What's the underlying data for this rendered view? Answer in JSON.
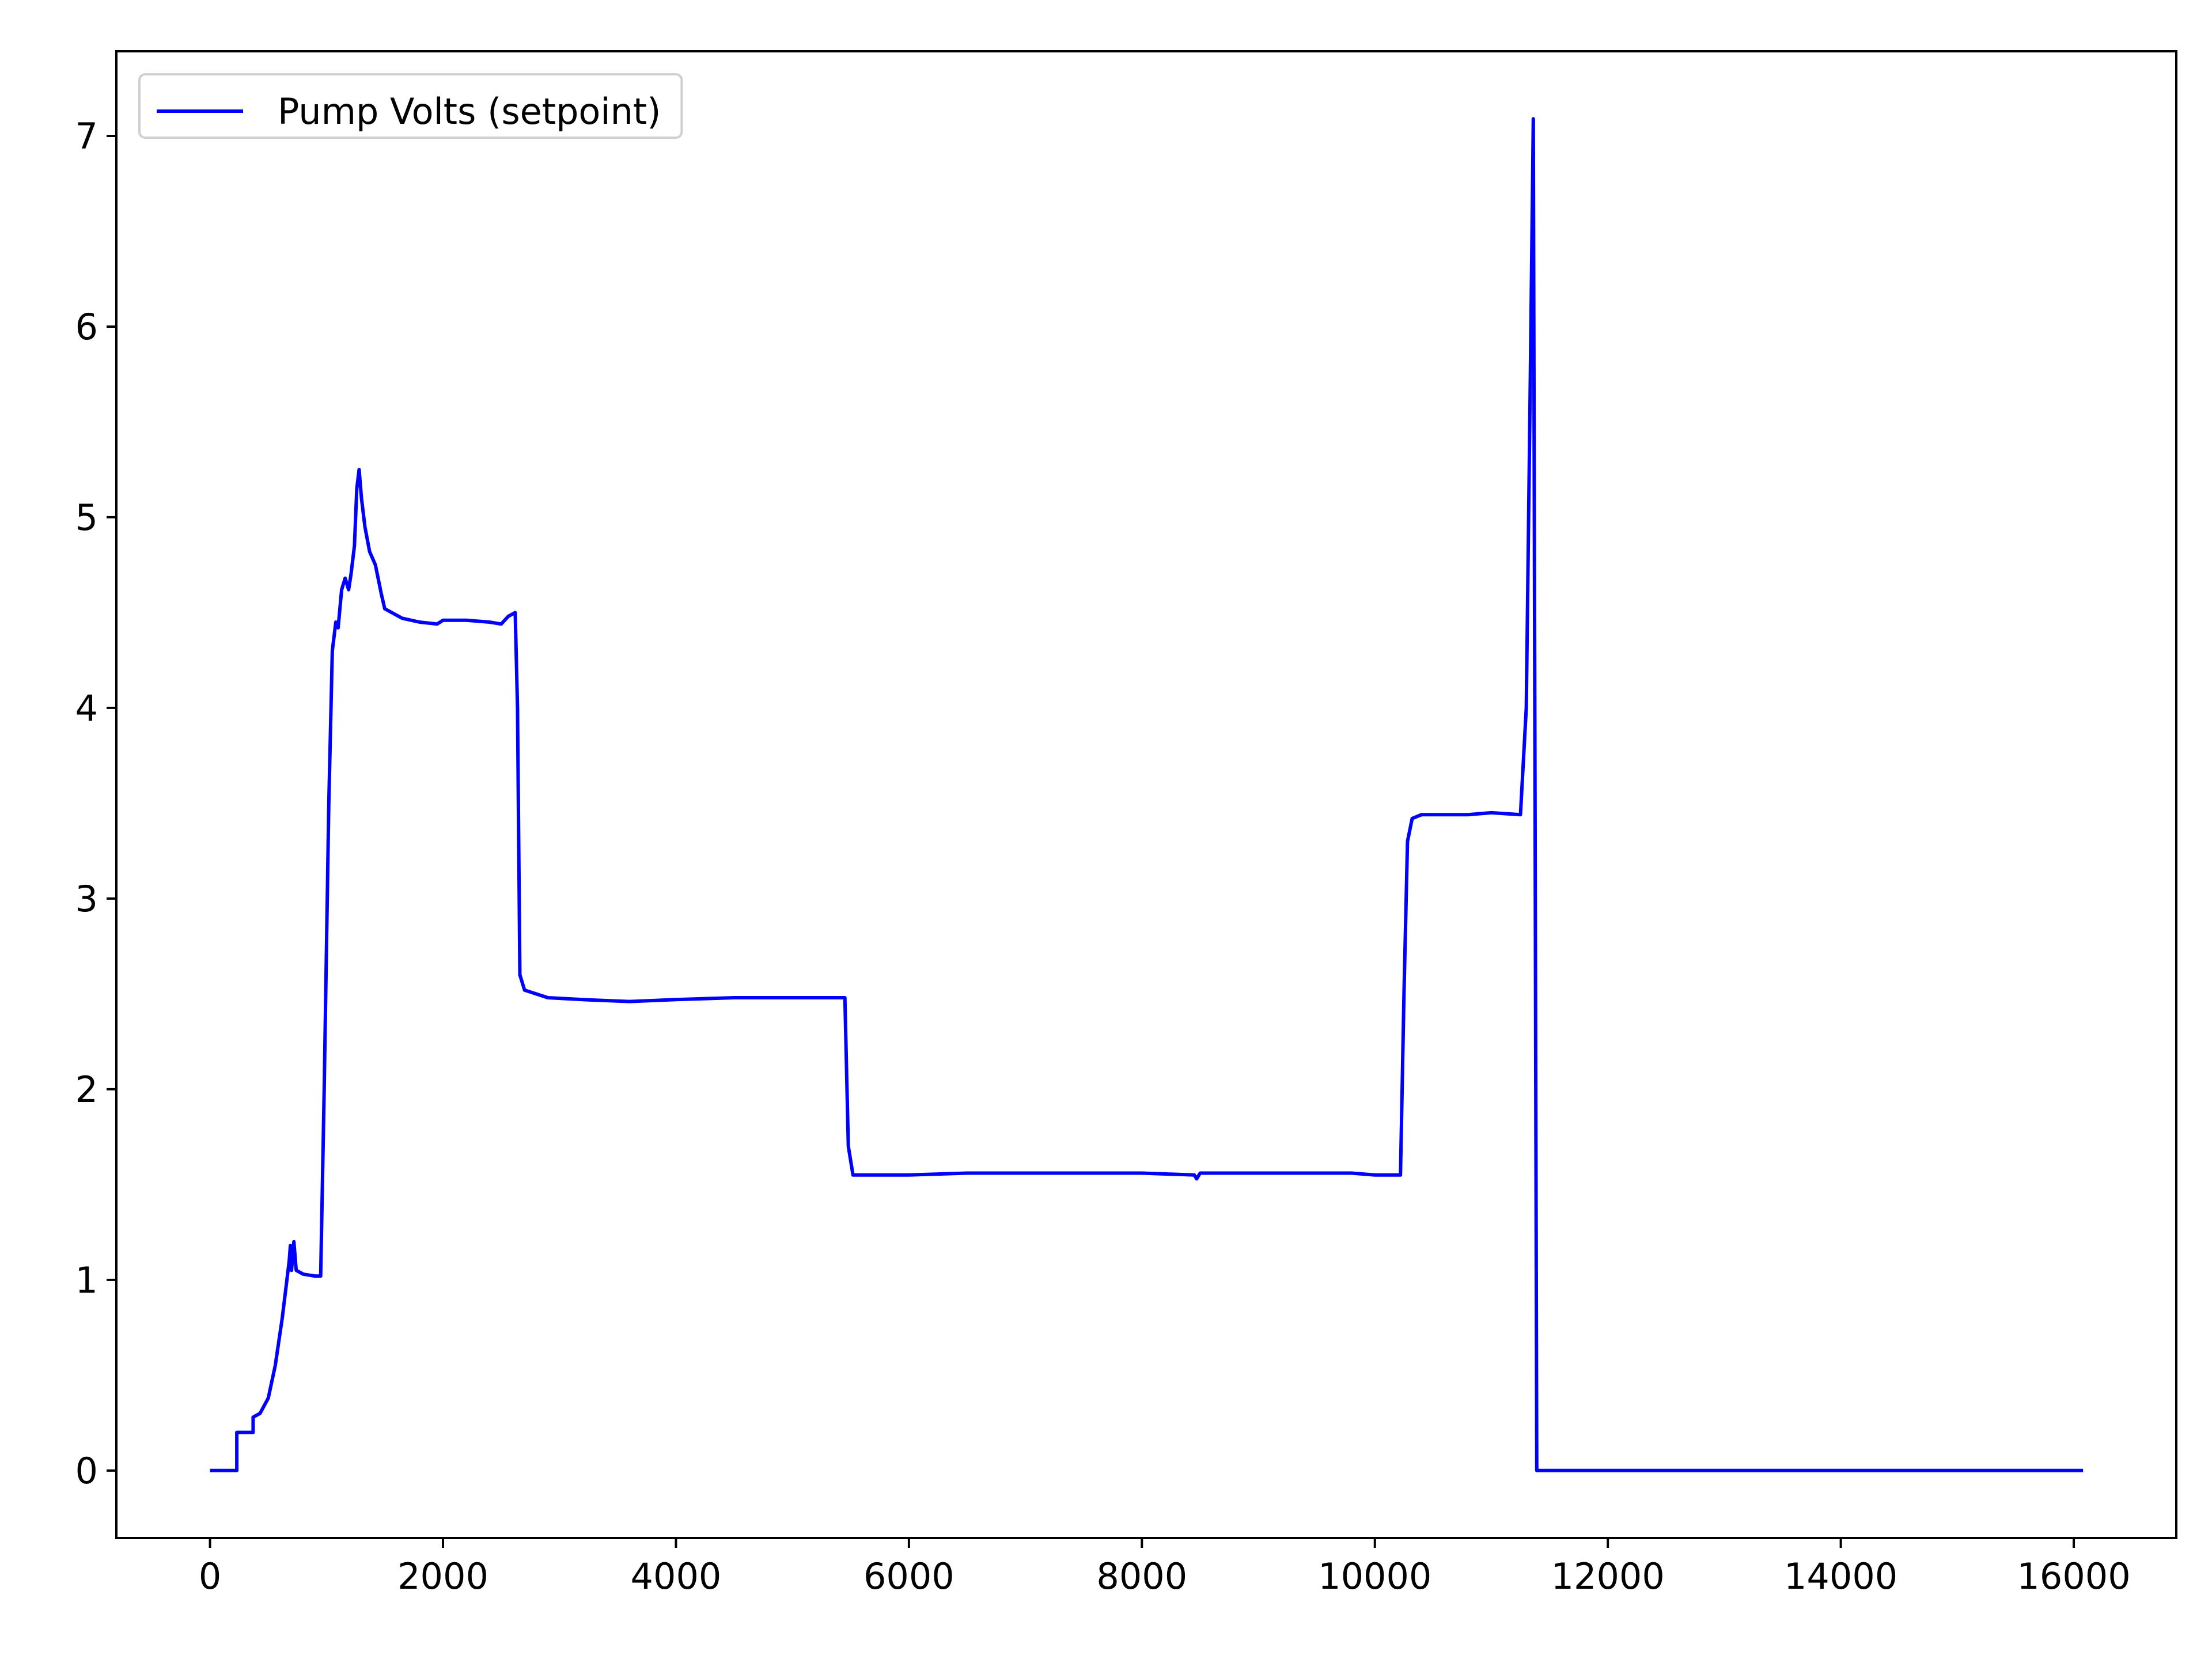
{
  "chart_data": {
    "type": "line",
    "x": [
      0,
      230,
      230,
      370,
      370,
      430,
      500,
      560,
      620,
      680,
      690,
      700,
      720,
      740,
      800,
      900,
      950,
      980,
      1020,
      1050,
      1080,
      1100,
      1130,
      1160,
      1190,
      1210,
      1240,
      1260,
      1280,
      1300,
      1330,
      1370,
      1420,
      1470,
      1500,
      1560,
      1650,
      1800,
      1950,
      2000,
      2200,
      2400,
      2500,
      2560,
      2620,
      2640,
      2660,
      2700,
      2800,
      2900,
      3200,
      3600,
      4000,
      4500,
      5000,
      5450,
      5480,
      5520,
      6000,
      6500,
      7000,
      8000,
      8450,
      8470,
      8500,
      9000,
      9800,
      10000,
      10220,
      10250,
      10280,
      10320,
      10400,
      10800,
      11000,
      11250,
      11300,
      11330,
      11360,
      11390,
      16080
    ],
    "series": [
      {
        "name": "Pump Volts (setpoint)",
        "color": "#0000ff",
        "values": [
          0,
          0,
          0.2,
          0.2,
          0.28,
          0.3,
          0.38,
          0.55,
          0.8,
          1.1,
          1.18,
          1.05,
          1.2,
          1.05,
          1.03,
          1.02,
          1.02,
          2.0,
          3.5,
          4.3,
          4.45,
          4.42,
          4.62,
          4.68,
          4.62,
          4.7,
          4.85,
          5.15,
          5.25,
          5.1,
          4.95,
          4.82,
          4.75,
          4.6,
          4.52,
          4.5,
          4.47,
          4.45,
          4.44,
          4.46,
          4.46,
          4.45,
          4.44,
          4.48,
          4.5,
          4.0,
          2.6,
          2.52,
          2.5,
          2.48,
          2.47,
          2.46,
          2.47,
          2.48,
          2.48,
          2.48,
          1.7,
          1.55,
          1.55,
          1.56,
          1.56,
          1.56,
          1.55,
          1.53,
          1.56,
          1.56,
          1.56,
          1.55,
          1.55,
          2.5,
          3.3,
          3.42,
          3.44,
          3.44,
          3.45,
          3.44,
          4.0,
          5.5,
          7.09,
          0,
          0
        ]
      }
    ],
    "xlim": [
      -804,
      16880
    ],
    "xticks": [
      0,
      2000,
      4000,
      6000,
      8000,
      10000,
      12000,
      14000,
      16000
    ],
    "ylim": [
      -0.354,
      7.444
    ],
    "yticks": [
      0,
      1,
      2,
      3,
      4,
      5,
      6,
      7
    ],
    "legend": "upper left",
    "grid": false
  }
}
